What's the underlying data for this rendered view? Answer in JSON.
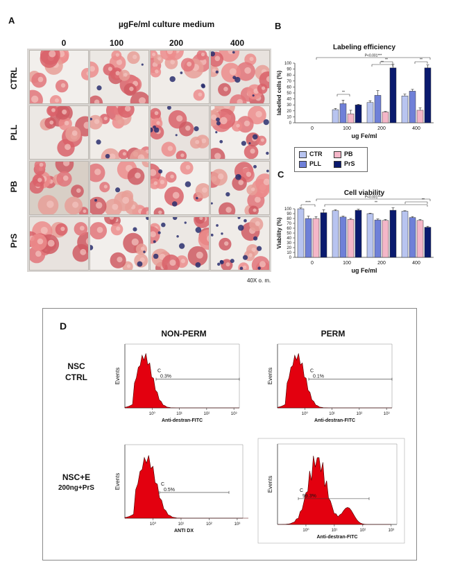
{
  "panel_a": {
    "letter": "A",
    "header": "µgFe/ml culture medium",
    "columns": [
      "0",
      "100",
      "200",
      "400"
    ],
    "rows": [
      "CTRL",
      "PLL",
      "PB",
      "PrS"
    ],
    "magnification": "40X o. m."
  },
  "panel_b": {
    "letter": "B"
  },
  "panel_c": {
    "letter": "C"
  },
  "legend": {
    "items": [
      {
        "label": "CTR",
        "color": "#b8c4f0"
      },
      {
        "label": "PB",
        "color": "#f4b6c8"
      },
      {
        "label": "PLL",
        "color": "#6f80d8"
      },
      {
        "label": "PrS",
        "color": "#0a1a6e"
      }
    ]
  },
  "chart_data": [
    {
      "type": "bar",
      "title": "Labeling efficiency",
      "xlabel": "ug Fe/ml",
      "ylabel": "labelled cells (%)",
      "categories": [
        "0",
        "100",
        "200",
        "400"
      ],
      "ylim": [
        0,
        100
      ],
      "yticks": [
        "0",
        "10",
        "20",
        "30",
        "40",
        "50",
        "60",
        "70",
        "80",
        "90",
        "100"
      ],
      "series": [
        {
          "name": "CTR",
          "values": [
            0,
            22,
            34,
            45
          ],
          "errors": [
            0,
            2,
            3,
            3
          ]
        },
        {
          "name": "PLL",
          "values": [
            0,
            32,
            46,
            53
          ],
          "errors": [
            0,
            6,
            8,
            3
          ]
        },
        {
          "name": "PB",
          "values": [
            0,
            15,
            18,
            21
          ],
          "errors": [
            0,
            6,
            1,
            4
          ]
        },
        {
          "name": "PrS",
          "values": [
            0,
            30,
            92,
            92
          ],
          "errors": [
            0,
            1,
            6,
            5
          ]
        }
      ],
      "annotations": [
        "P<0.001***",
        "**",
        "**",
        "**",
        "**"
      ]
    },
    {
      "type": "bar",
      "title": "Cell viability",
      "xlabel": "ug Fe/ml",
      "ylabel": "Viability (%)",
      "categories": [
        "0",
        "100",
        "200",
        "400"
      ],
      "ylim": [
        0,
        100
      ],
      "yticks": [
        "0",
        "10",
        "20",
        "30",
        "40",
        "50",
        "60",
        "70",
        "80",
        "90",
        "100"
      ],
      "series": [
        {
          "name": "CTR",
          "values": [
            100,
            96,
            90,
            95
          ],
          "errors": [
            2,
            2,
            1,
            1
          ]
        },
        {
          "name": "PLL",
          "values": [
            80,
            83,
            77,
            82
          ],
          "errors": [
            5,
            2,
            2,
            2
          ]
        },
        {
          "name": "PB",
          "values": [
            80,
            78,
            76,
            76
          ],
          "errors": [
            4,
            2,
            2,
            2
          ]
        },
        {
          "name": "PrS",
          "values": [
            92,
            97,
            97,
            62
          ],
          "errors": [
            6,
            2,
            5,
            2
          ]
        }
      ],
      "annotations": [
        "P<0.001***",
        "****",
        "**",
        "**"
      ]
    }
  ],
  "panel_d": {
    "letter": "D",
    "col_headers": [
      "NON-PERM",
      "PERM"
    ],
    "row1": {
      "line1": "NSC",
      "line2": "CTRL"
    },
    "row2": {
      "line1": "NSC+E",
      "line2": "200ng+PrS"
    },
    "yaxis": "Events",
    "gate_letter": "C",
    "histograms": [
      {
        "xlabel": "Anti-destran-FITC",
        "gate_pct": "0.3%"
      },
      {
        "xlabel": "Anti-destran-FITC",
        "gate_pct": "0.1%"
      },
      {
        "xlabel": "ANTI DX",
        "gate_pct": "0.5%"
      },
      {
        "xlabel": "Anti-destran-FITC",
        "gate_pct": "99.3%"
      }
    ],
    "xticks": [
      "10⁰",
      "10¹",
      "10²",
      "10³"
    ]
  }
}
